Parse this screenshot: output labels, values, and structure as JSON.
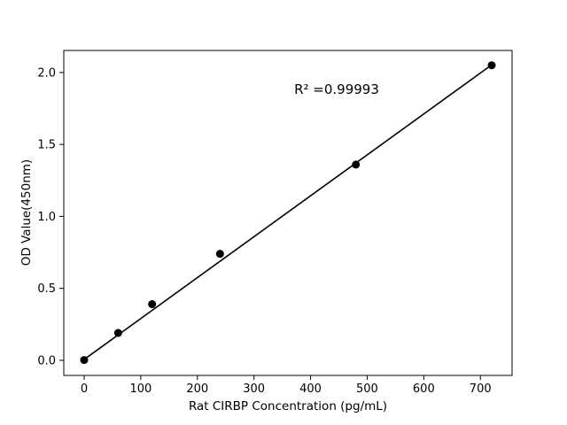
{
  "chart_data": {
    "type": "scatter",
    "title": "",
    "xlabel": "Rat CIRBP Concentration (pg/mL)",
    "ylabel": "OD Value(450nm)",
    "x": [
      0,
      60,
      120,
      240,
      480,
      720
    ],
    "y": [
      0.002,
      0.19,
      0.39,
      0.74,
      1.36,
      2.05
    ],
    "xlim": [
      -36,
      756
    ],
    "ylim": [
      -0.105,
      2.153
    ],
    "xticks": [
      0,
      100,
      200,
      300,
      400,
      500,
      600,
      700
    ],
    "xtick_labels": [
      "0",
      "100",
      "200",
      "300",
      "400",
      "500",
      "600",
      "700"
    ],
    "yticks": [
      0.0,
      0.5,
      1.0,
      1.5,
      2.0
    ],
    "ytick_labels": [
      "0.0",
      "0.5",
      "1.0",
      "1.5",
      "2.0"
    ],
    "fit_line": {
      "x_start": 0,
      "x_end": 720,
      "slope": 0.002843,
      "intercept": 0.006
    },
    "annotation": {
      "text": "R² =0.99993",
      "x": 370,
      "y": 1.85
    },
    "marker_color": "#000000",
    "line_color": "#000000",
    "axis_color": "#000000",
    "background": "#ffffff",
    "grid": false,
    "legend": null
  }
}
